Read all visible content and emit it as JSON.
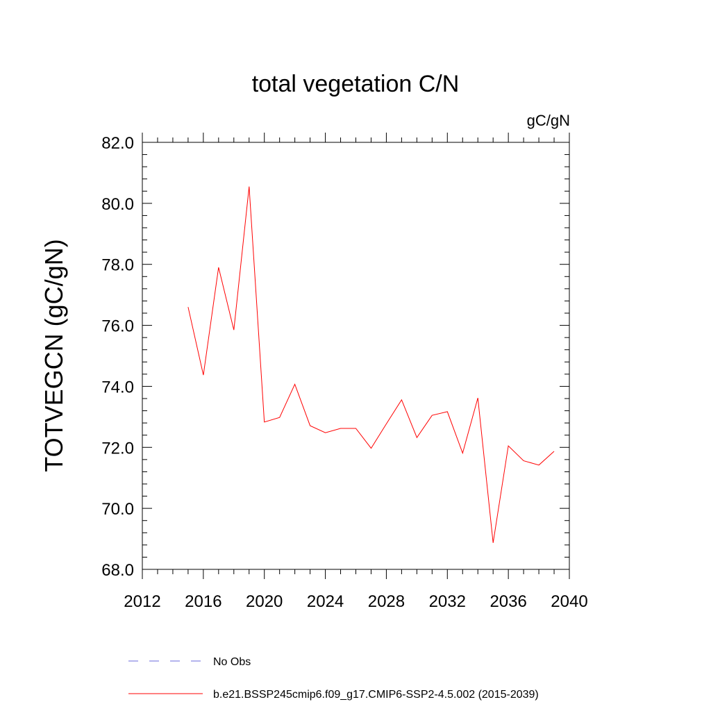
{
  "chart_data": {
    "type": "line",
    "title": "total vegetation C/N",
    "units": "gC/gN",
    "xlabel": "",
    "ylabel": "TOTVEGCN  (gC/gN)",
    "xlim": [
      2012,
      2040
    ],
    "ylim": [
      68.0,
      82.0
    ],
    "x_ticks": [
      2012,
      2016,
      2020,
      2024,
      2028,
      2032,
      2036,
      2040
    ],
    "x_tick_labels": [
      "2012",
      "2016",
      "2020",
      "2024",
      "2028",
      "2032",
      "2036",
      "2040"
    ],
    "y_ticks": [
      68.0,
      70.0,
      72.0,
      74.0,
      76.0,
      78.0,
      80.0,
      82.0
    ],
    "y_tick_labels": [
      "68.0",
      "70.0",
      "72.0",
      "74.0",
      "76.0",
      "78.0",
      "80.0",
      "82.0"
    ],
    "grid": false,
    "legend_position": "bottom",
    "series": [
      {
        "name": "b.e21.BSSP245cmip6.f09_g17.CMIP6-SSP2-4.5.002 (2015-2039)",
        "color": "#ff0000",
        "style": "solid",
        "x": [
          2015,
          2016,
          2017,
          2018,
          2019,
          2020,
          2021,
          2022,
          2023,
          2024,
          2025,
          2026,
          2027,
          2028,
          2029,
          2030,
          2031,
          2032,
          2033,
          2034,
          2035,
          2036,
          2037,
          2038,
          2039
        ],
        "y": [
          76.6,
          74.37,
          77.9,
          75.85,
          80.55,
          72.83,
          72.98,
          74.07,
          72.71,
          72.48,
          72.62,
          72.62,
          71.97,
          72.77,
          73.56,
          72.32,
          73.05,
          73.17,
          71.81,
          73.62,
          68.87,
          72.05,
          71.56,
          71.42,
          71.87
        ]
      }
    ],
    "legend": [
      {
        "label": "No Obs",
        "color": "#6a6adb",
        "style": "dashed"
      },
      {
        "label": "b.e21.BSSP245cmip6.f09_g17.CMIP6-SSP2-4.5.002 (2015-2039)",
        "color": "#ff0000",
        "style": "solid"
      }
    ]
  }
}
